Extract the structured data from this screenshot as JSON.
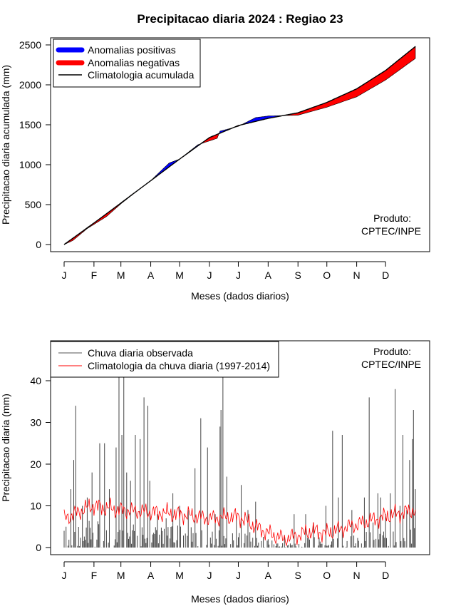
{
  "title": "Precipitacao diaria 2024 : Regiao 23",
  "chart_data": [
    {
      "type": "area",
      "ylabel": "Precipitacao diaria acumulada (mm)",
      "xlabel": "Meses (dados diarios)",
      "x_tick_labels": [
        "J",
        "F",
        "M",
        "A",
        "M",
        "J",
        "J",
        "A",
        "S",
        "O",
        "N",
        "D"
      ],
      "ylim": [
        0,
        2500
      ],
      "y_ticks": [
        0,
        500,
        1000,
        1500,
        2000,
        2500
      ],
      "legend": {
        "position": "top-left",
        "entries": [
          {
            "label": "Anomalias positivas",
            "color": "#0000ff"
          },
          {
            "label": "Anomalias negativas",
            "color": "#ff0000"
          },
          {
            "label": "Climatologia acumulada",
            "color": "#000000"
          }
        ]
      },
      "annotation": [
        "Produto:",
        "CPTEC/INPE"
      ],
      "climatology_knots": [
        [
          1,
          0
        ],
        [
          32,
          270
        ],
        [
          60,
          520
        ],
        [
          91,
          800
        ],
        [
          121,
          1070
        ],
        [
          152,
          1340
        ],
        [
          182,
          1490
        ],
        [
          213,
          1580
        ],
        [
          244,
          1650
        ],
        [
          274,
          1780
        ],
        [
          305,
          1950
        ],
        [
          335,
          2180
        ],
        [
          366,
          2480
        ]
      ],
      "observed_knots": [
        [
          1,
          0
        ],
        [
          10,
          50
        ],
        [
          25,
          200
        ],
        [
          45,
          350
        ],
        [
          60,
          510
        ],
        [
          80,
          700
        ],
        [
          91,
          800
        ],
        [
          110,
          1020
        ],
        [
          121,
          1070
        ],
        [
          140,
          1250
        ],
        [
          160,
          1330
        ],
        [
          163,
          1420
        ],
        [
          182,
          1480
        ],
        [
          200,
          1590
        ],
        [
          213,
          1610
        ],
        [
          244,
          1620
        ],
        [
          274,
          1720
        ],
        [
          305,
          1850
        ],
        [
          335,
          2060
        ],
        [
          366,
          2330
        ]
      ]
    },
    {
      "type": "bar",
      "ylabel": "Precipitacao diaria (mm)",
      "xlabel": "Meses (dados diarios)",
      "x_tick_labels": [
        "J",
        "F",
        "M",
        "A",
        "M",
        "J",
        "J",
        "A",
        "S",
        "O",
        "N",
        "D"
      ],
      "ylim": [
        0,
        45
      ],
      "y_ticks": [
        0,
        10,
        20,
        30,
        40
      ],
      "legend": {
        "position": "top-left",
        "entries": [
          {
            "label": "Chuva diaria observada",
            "color": "#555555"
          },
          {
            "label": "Climatologia da chuva diaria (1997-2014)",
            "color": "#ff0000"
          }
        ]
      },
      "annotation": [
        "Produto:",
        "CPTEC/INPE"
      ],
      "observed_peaks": [
        [
          3,
          5
        ],
        [
          8,
          14
        ],
        [
          11,
          21
        ],
        [
          13,
          34
        ],
        [
          20,
          10
        ],
        [
          25,
          12
        ],
        [
          30,
          18
        ],
        [
          38,
          25
        ],
        [
          43,
          25
        ],
        [
          48,
          14
        ],
        [
          55,
          24
        ],
        [
          58,
          45
        ],
        [
          61,
          27
        ],
        [
          63,
          41
        ],
        [
          66,
          18
        ],
        [
          70,
          16
        ],
        [
          75,
          27
        ],
        [
          80,
          26
        ],
        [
          84,
          36
        ],
        [
          88,
          34
        ],
        [
          90,
          16
        ],
        [
          98,
          8
        ],
        [
          107,
          7
        ],
        [
          114,
          13
        ],
        [
          121,
          10
        ],
        [
          130,
          9
        ],
        [
          137,
          19
        ],
        [
          143,
          31
        ],
        [
          150,
          24
        ],
        [
          158,
          8
        ],
        [
          163,
          29
        ],
        [
          164,
          33
        ],
        [
          166,
          45
        ],
        [
          170,
          17
        ],
        [
          180,
          7
        ],
        [
          185,
          15
        ],
        [
          192,
          9
        ],
        [
          200,
          11
        ],
        [
          213,
          2
        ],
        [
          230,
          3
        ],
        [
          240,
          8
        ],
        [
          252,
          8
        ],
        [
          260,
          6
        ],
        [
          273,
          10
        ],
        [
          280,
          28
        ],
        [
          286,
          12
        ],
        [
          290,
          27
        ],
        [
          300,
          9
        ],
        [
          313,
          12
        ],
        [
          318,
          36
        ],
        [
          322,
          6
        ],
        [
          327,
          13
        ],
        [
          330,
          12
        ],
        [
          335,
          8
        ],
        [
          340,
          13
        ],
        [
          345,
          38
        ],
        [
          350,
          10
        ],
        [
          353,
          27
        ],
        [
          357,
          9
        ],
        [
          360,
          21
        ],
        [
          363,
          26
        ],
        [
          364,
          33
        ],
        [
          366,
          14
        ]
      ],
      "climatology_knots": [
        [
          1,
          7
        ],
        [
          30,
          10
        ],
        [
          60,
          9
        ],
        [
          91,
          8.5
        ],
        [
          121,
          8
        ],
        [
          152,
          7
        ],
        [
          182,
          7.5
        ],
        [
          200,
          5
        ],
        [
          213,
          3.5
        ],
        [
          230,
          2
        ],
        [
          244,
          3
        ],
        [
          260,
          4
        ],
        [
          274,
          3.5
        ],
        [
          305,
          5.5
        ],
        [
          335,
          7.5
        ],
        [
          366,
          9
        ]
      ]
    }
  ]
}
